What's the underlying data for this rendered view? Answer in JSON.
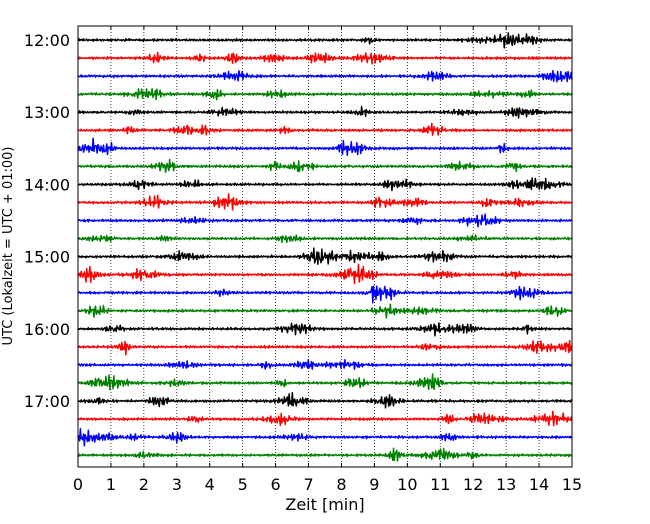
{
  "chart_data": {
    "type": "line",
    "title": "",
    "xlabel": "Zeit  [min]",
    "ylabel": "UTC (Lokalzeit = UTC + 01:00)",
    "xlim": [
      0,
      15
    ],
    "x_ticks": [
      0,
      1,
      2,
      3,
      4,
      5,
      6,
      7,
      8,
      9,
      10,
      11,
      12,
      13,
      14,
      15
    ],
    "x_tick_labels": [
      "0",
      "1",
      "2",
      "3",
      "4",
      "5",
      "6",
      "7",
      "8",
      "9",
      "10",
      "11",
      "12",
      "13",
      "14",
      "15"
    ],
    "y_tick_labels": [
      "12:00",
      "13:00",
      "14:00",
      "15:00",
      "16:00",
      "17:00"
    ],
    "y_tick_times": [
      "12:00",
      "13:00",
      "14:00",
      "15:00",
      "16:00",
      "17:00"
    ],
    "grid": "vertical dotted at each minute",
    "legend": "none",
    "color_cycle": [
      "#000000",
      "#ff0000",
      "#0000ff",
      "#008000"
    ],
    "trace_minutes": 15,
    "trace_count": 24,
    "series": [
      {
        "start": "12:00",
        "color": "#000000"
      },
      {
        "start": "12:15",
        "color": "#ff0000"
      },
      {
        "start": "12:30",
        "color": "#0000ff"
      },
      {
        "start": "12:45",
        "color": "#008000"
      },
      {
        "start": "13:00",
        "color": "#000000"
      },
      {
        "start": "13:15",
        "color": "#ff0000"
      },
      {
        "start": "13:30",
        "color": "#0000ff"
      },
      {
        "start": "13:45",
        "color": "#008000"
      },
      {
        "start": "14:00",
        "color": "#000000"
      },
      {
        "start": "14:15",
        "color": "#ff0000"
      },
      {
        "start": "14:30",
        "color": "#0000ff"
      },
      {
        "start": "14:45",
        "color": "#008000"
      },
      {
        "start": "15:00",
        "color": "#000000"
      },
      {
        "start": "15:15",
        "color": "#ff0000"
      },
      {
        "start": "15:30",
        "color": "#0000ff"
      },
      {
        "start": "15:45",
        "color": "#008000"
      },
      {
        "start": "16:00",
        "color": "#000000"
      },
      {
        "start": "16:15",
        "color": "#ff0000"
      },
      {
        "start": "16:30",
        "color": "#0000ff"
      },
      {
        "start": "16:45",
        "color": "#008000"
      },
      {
        "start": "17:00",
        "color": "#000000"
      },
      {
        "start": "17:15",
        "color": "#ff0000"
      },
      {
        "start": "17:30",
        "color": "#0000ff"
      },
      {
        "start": "17:45",
        "color": "#008000"
      }
    ]
  }
}
